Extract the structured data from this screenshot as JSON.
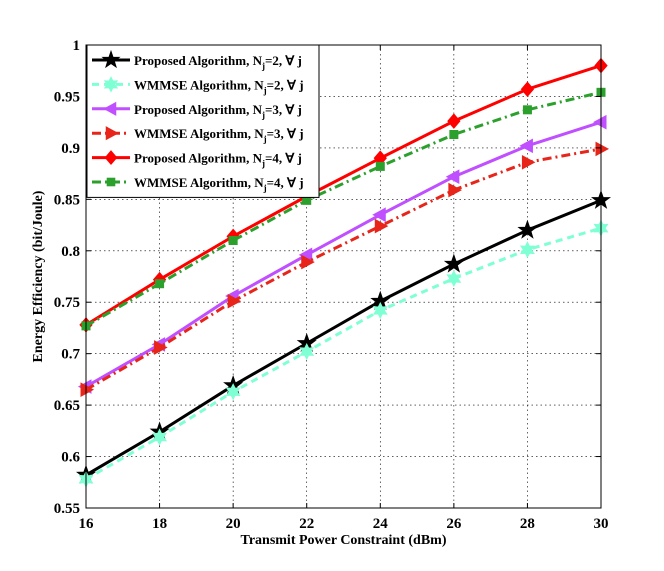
{
  "chart_data": {
    "type": "line",
    "xlabel": "Transmit Power Constraint (dBm)",
    "ylabel": "Energy Efficiency (bit/Joule)",
    "xlim": [
      16,
      30
    ],
    "ylim": [
      0.55,
      1.0
    ],
    "grid": true,
    "legend_position": "top-left",
    "x_ticks": [
      "16",
      "18",
      "20",
      "22",
      "24",
      "26",
      "28",
      "30"
    ],
    "y_ticks": [
      "0.55",
      "0.6",
      "0.65",
      "0.7",
      "0.75",
      "0.8",
      "0.85",
      "0.9",
      "0.95",
      "1"
    ],
    "x": [
      16,
      18,
      20,
      22,
      24,
      26,
      28,
      30
    ],
    "series": [
      {
        "name": "Proposed Algorithm, N_j=2, ∀ j",
        "label_main": "Proposed Algorithm, N",
        "label_sub": "j",
        "label_tail": "=2, ∀ j",
        "color": "#000000",
        "dash": "solid",
        "marker": "star",
        "values": [
          0.582,
          0.624,
          0.669,
          0.71,
          0.751,
          0.787,
          0.82,
          0.849
        ]
      },
      {
        "name": "WMMSE Algorithm, N_j=2, ∀ j",
        "label_main": "WMMSE Algorithm, N",
        "label_sub": "j",
        "label_tail": "=2, ∀ j",
        "color": "#7fffd4",
        "dash": "dashed",
        "marker": "hexagram",
        "values": [
          0.578,
          0.619,
          0.663,
          0.702,
          0.742,
          0.773,
          0.801,
          0.822
        ]
      },
      {
        "name": "Proposed Algorithm, N_j=3, ∀ j",
        "label_main": "Proposed Algorithm, N",
        "label_sub": "j",
        "label_tail": "=3, ∀ j",
        "color": "#bf4fff",
        "dash": "solid",
        "marker": "triangle-left",
        "values": [
          0.668,
          0.709,
          0.756,
          0.796,
          0.835,
          0.872,
          0.902,
          0.925
        ]
      },
      {
        "name": "WMMSE Algorithm, N_j=3, ∀ j",
        "label_main": "WMMSE Algorithm, N",
        "label_sub": "j",
        "label_tail": "=3, ∀ j",
        "color": "#e8251a",
        "dash": "dashdot",
        "marker": "triangle-right",
        "values": [
          0.665,
          0.706,
          0.751,
          0.789,
          0.824,
          0.859,
          0.886,
          0.899
        ]
      },
      {
        "name": "Proposed Algorithm, N_j=4, ∀ j",
        "label_main": "Proposed Algorithm, N",
        "label_sub": "j",
        "label_tail": "=4, ∀ j",
        "color": "#ff0000",
        "dash": "solid",
        "marker": "diamond",
        "values": [
          0.728,
          0.772,
          0.814,
          0.853,
          0.89,
          0.926,
          0.957,
          0.98
        ]
      },
      {
        "name": "WMMSE Algorithm, N_j=4, ∀ j",
        "label_main": "WMMSE Algorithm, N",
        "label_sub": "j",
        "label_tail": "=4, ∀ j",
        "color": "#2ca02c",
        "dash": "dashdot",
        "marker": "square",
        "values": [
          0.727,
          0.768,
          0.81,
          0.849,
          0.882,
          0.913,
          0.937,
          0.954
        ]
      }
    ]
  }
}
